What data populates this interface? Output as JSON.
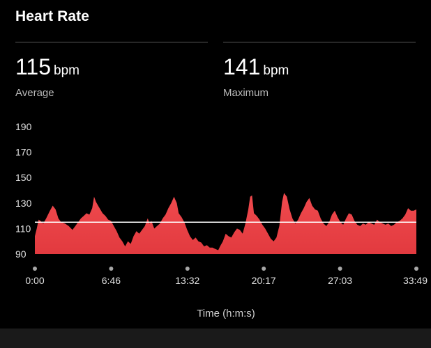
{
  "header": {
    "title": "Heart Rate"
  },
  "stats": [
    {
      "value": "115",
      "unit": "bpm",
      "label": "Average"
    },
    {
      "value": "141",
      "unit": "bpm",
      "label": "Maximum"
    }
  ],
  "colors": {
    "fill": "#e23a3f",
    "fill_top": "#f04a4e",
    "average_line": "#ffffff",
    "background": "#000000"
  },
  "chart_data": {
    "type": "area",
    "title": "",
    "xlabel": "Time (h:m:s)",
    "ylabel": "",
    "y_ticks": [
      190,
      170,
      150,
      130,
      110,
      90
    ],
    "ylim": [
      90,
      190
    ],
    "x_ticks": [
      "0:00",
      "6:46",
      "13:32",
      "20:17",
      "27:03",
      "33:49"
    ],
    "xlim_seconds": [
      0,
      2029
    ],
    "average_line": 115,
    "series": [
      {
        "values": [
          [
            0,
            104
          ],
          [
            10,
            110
          ],
          [
            20,
            117
          ],
          [
            30,
            116
          ],
          [
            45,
            114
          ],
          [
            60,
            118
          ],
          [
            80,
            124
          ],
          [
            95,
            128
          ],
          [
            110,
            125
          ],
          [
            125,
            118
          ],
          [
            140,
            115
          ],
          [
            160,
            114
          ],
          [
            180,
            112
          ],
          [
            200,
            109
          ],
          [
            215,
            112
          ],
          [
            230,
            115
          ],
          [
            245,
            118
          ],
          [
            260,
            120
          ],
          [
            275,
            122
          ],
          [
            290,
            121
          ],
          [
            305,
            126
          ],
          [
            315,
            135
          ],
          [
            325,
            131
          ],
          [
            340,
            127
          ],
          [
            360,
            122
          ],
          [
            375,
            120
          ],
          [
            390,
            117
          ],
          [
            405,
            116
          ],
          [
            420,
            112
          ],
          [
            435,
            108
          ],
          [
            450,
            103
          ],
          [
            465,
            100
          ],
          [
            480,
            96
          ],
          [
            495,
            100
          ],
          [
            510,
            98
          ],
          [
            525,
            104
          ],
          [
            540,
            108
          ],
          [
            555,
            106
          ],
          [
            570,
            109
          ],
          [
            585,
            112
          ],
          [
            600,
            118
          ],
          [
            610,
            114
          ],
          [
            620,
            116
          ],
          [
            635,
            110
          ],
          [
            650,
            112
          ],
          [
            665,
            114
          ],
          [
            680,
            118
          ],
          [
            695,
            121
          ],
          [
            710,
            126
          ],
          [
            725,
            130
          ],
          [
            740,
            135
          ],
          [
            755,
            130
          ],
          [
            765,
            122
          ],
          [
            780,
            119
          ],
          [
            795,
            115
          ],
          [
            810,
            109
          ],
          [
            825,
            104
          ],
          [
            840,
            101
          ],
          [
            855,
            103
          ],
          [
            870,
            100
          ],
          [
            885,
            99
          ],
          [
            900,
            96
          ],
          [
            915,
            97
          ],
          [
            930,
            95
          ],
          [
            945,
            95
          ],
          [
            960,
            94
          ],
          [
            975,
            93
          ],
          [
            985,
            96
          ],
          [
            1000,
            100
          ],
          [
            1015,
            106
          ],
          [
            1030,
            104
          ],
          [
            1045,
            103
          ],
          [
            1060,
            107
          ],
          [
            1075,
            110
          ],
          [
            1090,
            109
          ],
          [
            1105,
            106
          ],
          [
            1120,
            114
          ],
          [
            1135,
            125
          ],
          [
            1145,
            135
          ],
          [
            1155,
            136
          ],
          [
            1165,
            122
          ],
          [
            1180,
            120
          ],
          [
            1195,
            117
          ],
          [
            1210,
            113
          ],
          [
            1225,
            110
          ],
          [
            1240,
            106
          ],
          [
            1255,
            102
          ],
          [
            1270,
            100
          ],
          [
            1285,
            103
          ],
          [
            1300,
            112
          ],
          [
            1315,
            131
          ],
          [
            1325,
            138
          ],
          [
            1340,
            135
          ],
          [
            1355,
            125
          ],
          [
            1370,
            118
          ],
          [
            1385,
            114
          ],
          [
            1400,
            117
          ],
          [
            1415,
            122
          ],
          [
            1430,
            126
          ],
          [
            1445,
            131
          ],
          [
            1460,
            134
          ],
          [
            1475,
            128
          ],
          [
            1490,
            125
          ],
          [
            1505,
            124
          ],
          [
            1520,
            118
          ],
          [
            1535,
            114
          ],
          [
            1550,
            112
          ],
          [
            1565,
            115
          ],
          [
            1580,
            121
          ],
          [
            1595,
            124
          ],
          [
            1610,
            119
          ],
          [
            1625,
            115
          ],
          [
            1640,
            113
          ],
          [
            1655,
            118
          ],
          [
            1670,
            122
          ],
          [
            1685,
            121
          ],
          [
            1700,
            116
          ],
          [
            1715,
            113
          ],
          [
            1730,
            112
          ],
          [
            1745,
            114
          ],
          [
            1760,
            113
          ],
          [
            1775,
            115
          ],
          [
            1790,
            114
          ],
          [
            1805,
            113
          ],
          [
            1820,
            117
          ],
          [
            1835,
            115
          ],
          [
            1850,
            114
          ],
          [
            1865,
            113
          ],
          [
            1880,
            114
          ],
          [
            1895,
            112
          ],
          [
            1910,
            113
          ],
          [
            1925,
            115
          ],
          [
            1940,
            116
          ],
          [
            1955,
            118
          ],
          [
            1970,
            121
          ],
          [
            1985,
            126
          ],
          [
            2000,
            124
          ],
          [
            2015,
            124
          ],
          [
            2029,
            125
          ]
        ]
      }
    ]
  }
}
